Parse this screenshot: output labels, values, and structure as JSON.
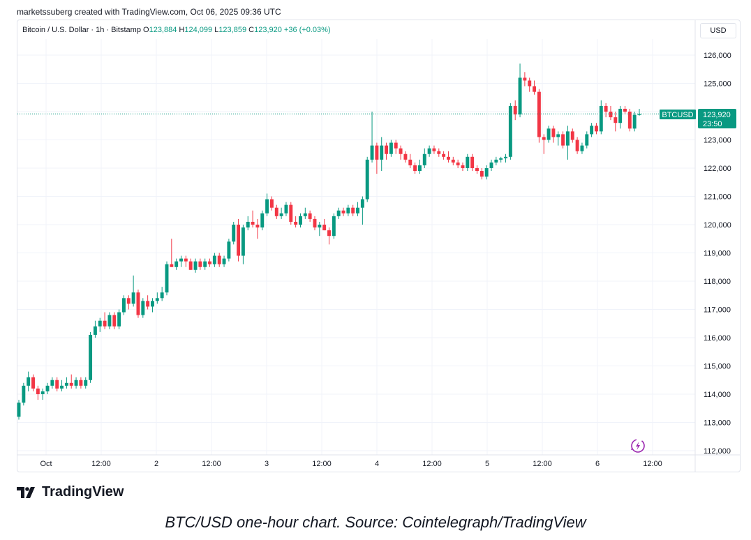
{
  "attribution": "marketssuberg created with TradingView.com, Oct 06, 2025 09:36 UTC",
  "legend": {
    "symbol_label": "Bitcoin / U.S. Dollar · 1h · Bitstamp",
    "o_label": "O",
    "o_value": "123,884",
    "h_label": "H",
    "h_value": "124,099",
    "l_label": "L",
    "l_value": "123,859",
    "c_label": "C",
    "c_value": "123,920",
    "change": "+36 (+0.03%)"
  },
  "currency_button": "USD",
  "last_price": {
    "ticker": "BTCUSD",
    "price": "123,920",
    "countdown": "23:50"
  },
  "logo_text": "TradingView",
  "caption": "BTC/USD one-hour chart. Source: Cointelegraph/TradingView",
  "colors": {
    "up": "#089981",
    "down": "#f23645",
    "grid": "#f0f3fa",
    "last_line": "#089981"
  },
  "chart_data": {
    "type": "candlestick",
    "interval": "1h",
    "ylim": [
      112000,
      126500
    ],
    "y_ticks": [
      112000,
      113000,
      114000,
      115000,
      116000,
      117000,
      118000,
      119000,
      120000,
      121000,
      122000,
      123000,
      124000,
      125000,
      126000
    ],
    "y_tick_labels": [
      "112,000",
      "113,000",
      "114,000",
      "115,000",
      "116,000",
      "117,000",
      "118,000",
      "119,000",
      "120,000",
      "121,000",
      "122,000",
      "123,000",
      "124,000",
      "125,000",
      "126,000"
    ],
    "x_range_hours": [
      -10,
      124
    ],
    "x_ticks": [
      {
        "h": 0,
        "label": "Oct"
      },
      {
        "h": 12,
        "label": "12:00"
      },
      {
        "h": 24,
        "label": "2"
      },
      {
        "h": 36,
        "label": "12:00"
      },
      {
        "h": 48,
        "label": "3"
      },
      {
        "h": 60,
        "label": "12:00"
      },
      {
        "h": 72,
        "label": "4"
      },
      {
        "h": 84,
        "label": "12:00"
      },
      {
        "h": 96,
        "label": "5"
      },
      {
        "h": 108,
        "label": "12:00"
      },
      {
        "h": 120,
        "label": "6"
      },
      {
        "h": 132,
        "label": "12:00"
      }
    ],
    "last_price": 123920,
    "candles": [
      {
        "o": 113200,
        "h": 113800,
        "l": 113100,
        "c": 113700
      },
      {
        "o": 113700,
        "h": 114400,
        "l": 113600,
        "c": 114300
      },
      {
        "o": 114300,
        "h": 114800,
        "l": 114100,
        "c": 114600
      },
      {
        "o": 114600,
        "h": 114700,
        "l": 114100,
        "c": 114200
      },
      {
        "o": 114200,
        "h": 114300,
        "l": 113800,
        "c": 114000
      },
      {
        "o": 114000,
        "h": 114200,
        "l": 113800,
        "c": 114100
      },
      {
        "o": 114100,
        "h": 114400,
        "l": 114000,
        "c": 114300
      },
      {
        "o": 114300,
        "h": 114600,
        "l": 114200,
        "c": 114500
      },
      {
        "o": 114500,
        "h": 114600,
        "l": 114100,
        "c": 114200
      },
      {
        "o": 114200,
        "h": 114500,
        "l": 114100,
        "c": 114300
      },
      {
        "o": 114300,
        "h": 114600,
        "l": 114200,
        "c": 114400
      },
      {
        "o": 114400,
        "h": 114700,
        "l": 114200,
        "c": 114300
      },
      {
        "o": 114300,
        "h": 114600,
        "l": 114200,
        "c": 114500
      },
      {
        "o": 114500,
        "h": 114600,
        "l": 114200,
        "c": 114300
      },
      {
        "o": 114300,
        "h": 114600,
        "l": 114200,
        "c": 114500
      },
      {
        "o": 114500,
        "h": 116200,
        "l": 114400,
        "c": 116100
      },
      {
        "o": 116100,
        "h": 116600,
        "l": 116000,
        "c": 116400
      },
      {
        "o": 116400,
        "h": 116700,
        "l": 116200,
        "c": 116600
      },
      {
        "o": 116600,
        "h": 116900,
        "l": 116300,
        "c": 116400
      },
      {
        "o": 116400,
        "h": 116900,
        "l": 116300,
        "c": 116800
      },
      {
        "o": 116800,
        "h": 116900,
        "l": 116300,
        "c": 116400
      },
      {
        "o": 116400,
        "h": 117000,
        "l": 116300,
        "c": 116900
      },
      {
        "o": 116900,
        "h": 117500,
        "l": 116800,
        "c": 117400
      },
      {
        "o": 117400,
        "h": 117500,
        "l": 117000,
        "c": 117200
      },
      {
        "o": 117200,
        "h": 118200,
        "l": 117100,
        "c": 117600
      },
      {
        "o": 117600,
        "h": 117700,
        "l": 116700,
        "c": 116800
      },
      {
        "o": 116800,
        "h": 117400,
        "l": 116700,
        "c": 117300
      },
      {
        "o": 117300,
        "h": 117500,
        "l": 117000,
        "c": 117100
      },
      {
        "o": 117100,
        "h": 117400,
        "l": 116900,
        "c": 117300
      },
      {
        "o": 117300,
        "h": 117600,
        "l": 117200,
        "c": 117400
      },
      {
        "o": 117400,
        "h": 117800,
        "l": 117300,
        "c": 117600
      },
      {
        "o": 117600,
        "h": 118700,
        "l": 117500,
        "c": 118600
      },
      {
        "o": 118600,
        "h": 119500,
        "l": 118500,
        "c": 118500
      },
      {
        "o": 118500,
        "h": 118800,
        "l": 118400,
        "c": 118700
      },
      {
        "o": 118700,
        "h": 118900,
        "l": 118500,
        "c": 118800
      },
      {
        "o": 118800,
        "h": 118900,
        "l": 118500,
        "c": 118700
      },
      {
        "o": 118700,
        "h": 118800,
        "l": 118400,
        "c": 118400
      },
      {
        "o": 118400,
        "h": 118800,
        "l": 118300,
        "c": 118700
      },
      {
        "o": 118700,
        "h": 118800,
        "l": 118400,
        "c": 118500
      },
      {
        "o": 118500,
        "h": 118800,
        "l": 118400,
        "c": 118700
      },
      {
        "o": 118700,
        "h": 118800,
        "l": 118500,
        "c": 118600
      },
      {
        "o": 118600,
        "h": 119000,
        "l": 118500,
        "c": 118900
      },
      {
        "o": 118900,
        "h": 119000,
        "l": 118500,
        "c": 118600
      },
      {
        "o": 118600,
        "h": 118900,
        "l": 118500,
        "c": 118800
      },
      {
        "o": 118800,
        "h": 119500,
        "l": 118700,
        "c": 119400
      },
      {
        "o": 119400,
        "h": 120100,
        "l": 119300,
        "c": 120000
      },
      {
        "o": 120000,
        "h": 120200,
        "l": 118700,
        "c": 118900
      },
      {
        "o": 118900,
        "h": 120000,
        "l": 118600,
        "c": 119900
      },
      {
        "o": 119900,
        "h": 120300,
        "l": 119800,
        "c": 120100
      },
      {
        "o": 120100,
        "h": 120500,
        "l": 119900,
        "c": 120000
      },
      {
        "o": 120000,
        "h": 120200,
        "l": 119500,
        "c": 119900
      },
      {
        "o": 119900,
        "h": 120500,
        "l": 119800,
        "c": 120400
      },
      {
        "o": 120400,
        "h": 121100,
        "l": 120300,
        "c": 120900
      },
      {
        "o": 120900,
        "h": 121000,
        "l": 120500,
        "c": 120600
      },
      {
        "o": 120600,
        "h": 120700,
        "l": 120200,
        "c": 120300
      },
      {
        "o": 120300,
        "h": 120600,
        "l": 120200,
        "c": 120400
      },
      {
        "o": 120400,
        "h": 120800,
        "l": 120300,
        "c": 120700
      },
      {
        "o": 120700,
        "h": 120800,
        "l": 120000,
        "c": 120100
      },
      {
        "o": 120100,
        "h": 120300,
        "l": 119900,
        "c": 120000
      },
      {
        "o": 120000,
        "h": 120400,
        "l": 119900,
        "c": 120300
      },
      {
        "o": 120300,
        "h": 120600,
        "l": 120200,
        "c": 120400
      },
      {
        "o": 120400,
        "h": 120500,
        "l": 120100,
        "c": 120200
      },
      {
        "o": 120200,
        "h": 120300,
        "l": 119800,
        "c": 119900
      },
      {
        "o": 119900,
        "h": 120100,
        "l": 119600,
        "c": 120000
      },
      {
        "o": 120000,
        "h": 120200,
        "l": 119800,
        "c": 119800
      },
      {
        "o": 119800,
        "h": 119900,
        "l": 119300,
        "c": 119600
      },
      {
        "o": 119600,
        "h": 120400,
        "l": 119500,
        "c": 120300
      },
      {
        "o": 120300,
        "h": 120600,
        "l": 120200,
        "c": 120500
      },
      {
        "o": 120500,
        "h": 120600,
        "l": 120300,
        "c": 120400
      },
      {
        "o": 120400,
        "h": 120700,
        "l": 120300,
        "c": 120600
      },
      {
        "o": 120600,
        "h": 120700,
        "l": 120300,
        "c": 120400
      },
      {
        "o": 120400,
        "h": 120800,
        "l": 120300,
        "c": 120600
      },
      {
        "o": 120600,
        "h": 121000,
        "l": 120000,
        "c": 120900
      },
      {
        "o": 120900,
        "h": 122400,
        "l": 120800,
        "c": 122300
      },
      {
        "o": 122300,
        "h": 124000,
        "l": 122200,
        "c": 122800
      },
      {
        "o": 122800,
        "h": 122900,
        "l": 121800,
        "c": 122300
      },
      {
        "o": 122300,
        "h": 123100,
        "l": 121900,
        "c": 122800
      },
      {
        "o": 122800,
        "h": 122900,
        "l": 122300,
        "c": 122500
      },
      {
        "o": 122500,
        "h": 123000,
        "l": 122400,
        "c": 122900
      },
      {
        "o": 122900,
        "h": 123000,
        "l": 122500,
        "c": 122700
      },
      {
        "o": 122700,
        "h": 122800,
        "l": 122300,
        "c": 122500
      },
      {
        "o": 122500,
        "h": 122600,
        "l": 122200,
        "c": 122300
      },
      {
        "o": 122300,
        "h": 122500,
        "l": 122000,
        "c": 122100
      },
      {
        "o": 122100,
        "h": 122200,
        "l": 121800,
        "c": 121900
      },
      {
        "o": 121900,
        "h": 122300,
        "l": 121800,
        "c": 122100
      },
      {
        "o": 122100,
        "h": 122700,
        "l": 122000,
        "c": 122500
      },
      {
        "o": 122500,
        "h": 122800,
        "l": 122400,
        "c": 122700
      },
      {
        "o": 122700,
        "h": 122800,
        "l": 122500,
        "c": 122600
      },
      {
        "o": 122600,
        "h": 122700,
        "l": 122400,
        "c": 122500
      },
      {
        "o": 122500,
        "h": 122600,
        "l": 122300,
        "c": 122400
      },
      {
        "o": 122400,
        "h": 122600,
        "l": 122200,
        "c": 122300
      },
      {
        "o": 122300,
        "h": 122400,
        "l": 122100,
        "c": 122200
      },
      {
        "o": 122200,
        "h": 122300,
        "l": 122000,
        "c": 122100
      },
      {
        "o": 122100,
        "h": 122200,
        "l": 121900,
        "c": 122000
      },
      {
        "o": 122000,
        "h": 122500,
        "l": 121900,
        "c": 122400
      },
      {
        "o": 122400,
        "h": 122500,
        "l": 121900,
        "c": 122000
      },
      {
        "o": 122000,
        "h": 122100,
        "l": 121800,
        "c": 121900
      },
      {
        "o": 121900,
        "h": 122000,
        "l": 121600,
        "c": 121700
      },
      {
        "o": 121700,
        "h": 122100,
        "l": 121600,
        "c": 122000
      },
      {
        "o": 122000,
        "h": 122300,
        "l": 121900,
        "c": 122200
      },
      {
        "o": 122200,
        "h": 122400,
        "l": 122100,
        "c": 122300
      },
      {
        "o": 122300,
        "h": 122400,
        "l": 122200,
        "c": 122350
      },
      {
        "o": 122350,
        "h": 122500,
        "l": 122200,
        "c": 122400
      },
      {
        "o": 122400,
        "h": 124300,
        "l": 122300,
        "c": 124200
      },
      {
        "o": 124200,
        "h": 124400,
        "l": 123700,
        "c": 123900
      },
      {
        "o": 123900,
        "h": 125700,
        "l": 123800,
        "c": 125200
      },
      {
        "o": 125200,
        "h": 125400,
        "l": 124900,
        "c": 125100
      },
      {
        "o": 125100,
        "h": 125200,
        "l": 124700,
        "c": 124900
      },
      {
        "o": 124900,
        "h": 125100,
        "l": 124600,
        "c": 124700
      },
      {
        "o": 124700,
        "h": 124800,
        "l": 122900,
        "c": 123100
      },
      {
        "o": 123100,
        "h": 123200,
        "l": 122500,
        "c": 123000
      },
      {
        "o": 123000,
        "h": 123500,
        "l": 122900,
        "c": 123400
      },
      {
        "o": 123400,
        "h": 123500,
        "l": 122900,
        "c": 123100
      },
      {
        "o": 123100,
        "h": 123300,
        "l": 122800,
        "c": 123200
      },
      {
        "o": 123200,
        "h": 123300,
        "l": 122700,
        "c": 122800
      },
      {
        "o": 122800,
        "h": 123500,
        "l": 122300,
        "c": 123300
      },
      {
        "o": 123300,
        "h": 123400,
        "l": 122900,
        "c": 123000
      },
      {
        "o": 123000,
        "h": 123100,
        "l": 122500,
        "c": 122600
      },
      {
        "o": 122600,
        "h": 122900,
        "l": 122500,
        "c": 122800
      },
      {
        "o": 122800,
        "h": 123300,
        "l": 122700,
        "c": 123200
      },
      {
        "o": 123200,
        "h": 123600,
        "l": 123100,
        "c": 123500
      },
      {
        "o": 123500,
        "h": 123600,
        "l": 123200,
        "c": 123300
      },
      {
        "o": 123300,
        "h": 124400,
        "l": 123200,
        "c": 124200
      },
      {
        "o": 124200,
        "h": 124300,
        "l": 123800,
        "c": 124000
      },
      {
        "o": 124000,
        "h": 124200,
        "l": 123700,
        "c": 123800
      },
      {
        "o": 123800,
        "h": 124000,
        "l": 123300,
        "c": 123600
      },
      {
        "o": 123600,
        "h": 124200,
        "l": 123400,
        "c": 124100
      },
      {
        "o": 124100,
        "h": 124200,
        "l": 123900,
        "c": 124000
      },
      {
        "o": 124000,
        "h": 124100,
        "l": 123300,
        "c": 123400
      },
      {
        "o": 123400,
        "h": 124000,
        "l": 123300,
        "c": 123884
      },
      {
        "o": 123884,
        "h": 124099,
        "l": 123859,
        "c": 123920
      }
    ]
  }
}
